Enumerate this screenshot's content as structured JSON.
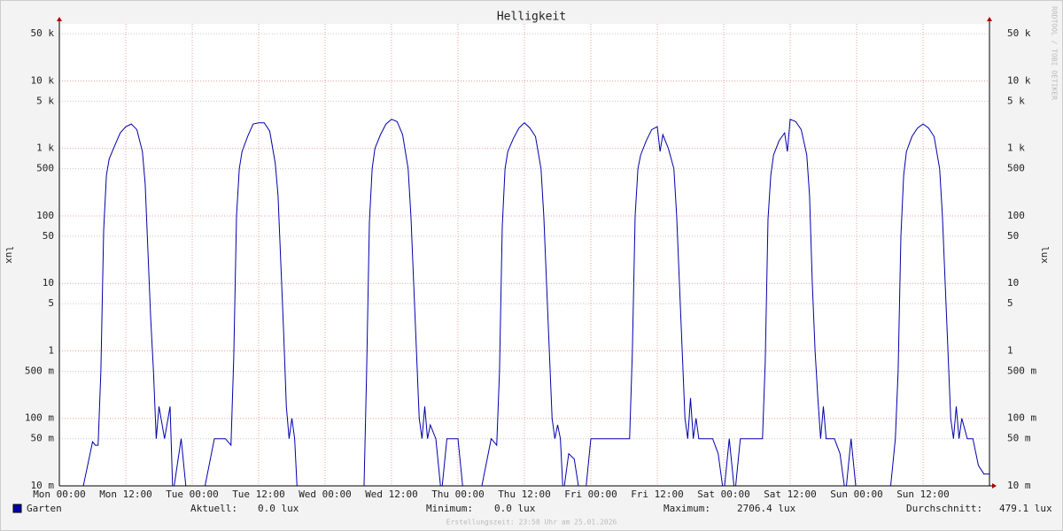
{
  "chart_data": {
    "type": "line",
    "title": "Helligkeit",
    "ylabel": "lux",
    "log_y": true,
    "grid": true,
    "ylim": [
      0.01,
      70000
    ],
    "yticks": [
      {
        "value": 0.01,
        "label": "10 m"
      },
      {
        "value": 0.05,
        "label": "50 m"
      },
      {
        "value": 0.1,
        "label": "100 m"
      },
      {
        "value": 0.5,
        "label": "500 m"
      },
      1,
      5,
      10,
      50,
      100,
      500,
      {
        "value": 1000,
        "label": "1 k"
      },
      {
        "value": 5000,
        "label": "5 k"
      },
      {
        "value": 10000,
        "label": "10 k"
      },
      {
        "value": 50000,
        "label": "50 k"
      }
    ],
    "xlim": [
      0,
      168
    ],
    "xticks": [
      {
        "value": 0,
        "label": "Mon 00:00"
      },
      {
        "value": 12,
        "label": "Mon 12:00"
      },
      {
        "value": 24,
        "label": "Tue 00:00"
      },
      {
        "value": 36,
        "label": "Tue 12:00"
      },
      {
        "value": 48,
        "label": "Wed 00:00"
      },
      {
        "value": 60,
        "label": "Wed 12:00"
      },
      {
        "value": 72,
        "label": "Thu 00:00"
      },
      {
        "value": 84,
        "label": "Thu 12:00"
      },
      {
        "value": 96,
        "label": "Fri 00:00"
      },
      {
        "value": 108,
        "label": "Fri 12:00"
      },
      {
        "value": 120,
        "label": "Sat 00:00"
      },
      {
        "value": 132,
        "label": "Sat 12:00"
      },
      {
        "value": 144,
        "label": "Sun 00:00"
      },
      {
        "value": 156,
        "label": "Sun 12:00"
      }
    ],
    "x": [
      0,
      2,
      4,
      6,
      6.5,
      7,
      7.5,
      8,
      8.5,
      9,
      10,
      11,
      12,
      13,
      14,
      15,
      15.5,
      16,
      16.5,
      17,
      17.5,
      18,
      19,
      20,
      20.5,
      22,
      23,
      24,
      26,
      28,
      30,
      31,
      31.5,
      32,
      32.5,
      33,
      34,
      35,
      36,
      37,
      38,
      39,
      39.5,
      40,
      40.5,
      41,
      41.5,
      42,
      42.5,
      43,
      46,
      47,
      48,
      52,
      54,
      55,
      55.5,
      56,
      56.5,
      57,
      58,
      59,
      60,
      61,
      62,
      63,
      63.5,
      64,
      64.5,
      65,
      65.5,
      66,
      66.5,
      67,
      68,
      69,
      70,
      71,
      72,
      73,
      74,
      76,
      78,
      79,
      79.5,
      80,
      80.5,
      81,
      82,
      83,
      84,
      85,
      86,
      87,
      87.5,
      88,
      88.5,
      89,
      89.5,
      90,
      90.5,
      91,
      92,
      93,
      94,
      95,
      96,
      97,
      98,
      99,
      100,
      102,
      103,
      103.5,
      104,
      104.5,
      105,
      106,
      107,
      108,
      108.5,
      109,
      110,
      111,
      111.5,
      112,
      112.5,
      113,
      113.5,
      114,
      114.5,
      115,
      115.5,
      116,
      117,
      118,
      119,
      120,
      121,
      122,
      123,
      124,
      126,
      127,
      127.5,
      128,
      128.5,
      129,
      130,
      131,
      131.5,
      132,
      133,
      134,
      135,
      135.5,
      136,
      136.5,
      137,
      137.5,
      138,
      138.5,
      139,
      140,
      141,
      142,
      143,
      144,
      146,
      148,
      150,
      151,
      151.5,
      152,
      152.5,
      153,
      154,
      155,
      156,
      157,
      158,
      159,
      159.5,
      160,
      160.5,
      161,
      161.5,
      162,
      162.5,
      163,
      164,
      165,
      166,
      167,
      168
    ],
    "series": [
      {
        "name": "Garten",
        "color": "#0000aa",
        "values": [
          0,
          0,
          0,
          0.045,
          0.04,
          0.04,
          0.5,
          60,
          400,
          700,
          1100,
          1700,
          2100,
          2300,
          1900,
          900,
          300,
          30,
          3,
          0.5,
          0.05,
          0.15,
          0.05,
          0.15,
          0,
          0.05,
          0,
          0,
          0,
          0.05,
          0.05,
          0.04,
          0.8,
          100,
          500,
          900,
          1500,
          2300,
          2400,
          2400,
          1800,
          600,
          200,
          20,
          2,
          0.15,
          0.05,
          0.1,
          0.05,
          0,
          0,
          0,
          0,
          0,
          0,
          0,
          0.5,
          80,
          500,
          1000,
          1600,
          2300,
          2700,
          2500,
          1600,
          500,
          100,
          10,
          1,
          0.1,
          0.05,
          0.15,
          0.05,
          0.08,
          0.05,
          0,
          0.05,
          0.05,
          0.05,
          0,
          0,
          0,
          0.05,
          0.04,
          0.5,
          70,
          500,
          900,
          1400,
          2000,
          2400,
          2000,
          1500,
          500,
          100,
          10,
          1,
          0.1,
          0.05,
          0.08,
          0.05,
          0,
          0.03,
          0.025,
          0,
          0,
          0.05,
          0.05,
          0.05,
          0.05,
          0.05,
          0.05,
          0.05,
          1,
          100,
          500,
          800,
          1300,
          1900,
          2100,
          900,
          1600,
          1000,
          500,
          100,
          10,
          1,
          0.1,
          0.05,
          0.2,
          0.05,
          0.1,
          0.05,
          0.05,
          0.05,
          0.05,
          0.03,
          0,
          0.05,
          0,
          0.05,
          0.05,
          0.05,
          0.05,
          0.7,
          90,
          400,
          800,
          1300,
          1700,
          900,
          2700,
          2500,
          1900,
          800,
          200,
          10,
          1,
          0.2,
          0.05,
          0.15,
          0.05,
          0.05,
          0.05,
          0.03,
          0,
          0.05,
          0,
          0,
          0,
          0,
          0.05,
          0.5,
          50,
          400,
          900,
          1500,
          2000,
          2300,
          2000,
          1500,
          500,
          100,
          10,
          1,
          0.1,
          0.05,
          0.15,
          0.05,
          0.1,
          0.05,
          0.05,
          0.02,
          0.015,
          0.015
        ]
      }
    ],
    "stats": [
      {
        "label": "Aktuell:",
        "value": "0.0 lux"
      },
      {
        "label": "Minimum:",
        "value": "0.0 lux"
      },
      {
        "label": "Maximum:",
        "value": "2706.4 lux"
      },
      {
        "label": "Durchschnitt:",
        "value": "479.1 lux"
      }
    ],
    "footer": "Erstellungszeit: 23:58 Uhr am 25.01.2026",
    "watermark": "RRDTOOL / TOBI OETIKER"
  }
}
